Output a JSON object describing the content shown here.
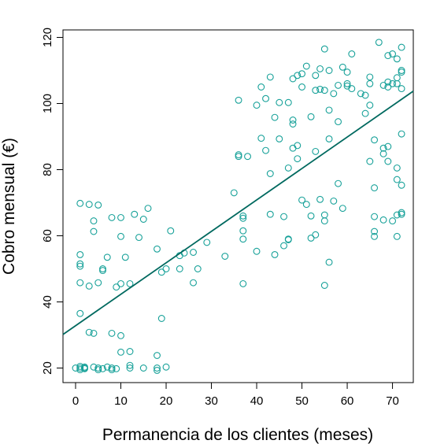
{
  "chart_data": {
    "type": "scatter",
    "xlabel": "Permanencia de los clientes (meses)",
    "ylabel": "Cobro mensual (€)",
    "xlim": [
      -3,
      75
    ],
    "ylim": [
      15,
      123
    ],
    "xticks": [
      0,
      10,
      20,
      30,
      40,
      50,
      60,
      70
    ],
    "yticks": [
      20,
      40,
      60,
      80,
      100,
      120
    ],
    "grid": false,
    "point_color": "#17a199",
    "line_color": "#00695f",
    "regression_line": {
      "intercept": 32.8,
      "slope": 0.951
    },
    "points": [
      [
        0,
        20
      ],
      [
        1,
        20
      ],
      [
        1,
        19.5
      ],
      [
        1,
        20.5
      ],
      [
        2,
        20
      ],
      [
        2,
        19.8
      ],
      [
        2,
        20.3
      ],
      [
        4,
        20.3
      ],
      [
        5,
        20
      ],
      [
        5,
        19.5
      ],
      [
        6,
        19.8
      ],
      [
        7,
        20.3
      ],
      [
        8,
        20
      ],
      [
        9,
        19.8
      ],
      [
        8,
        19.5
      ],
      [
        12,
        20.8
      ],
      [
        12,
        20
      ],
      [
        15,
        20
      ],
      [
        18,
        20
      ],
      [
        18,
        19.3
      ],
      [
        20,
        20.3
      ],
      [
        3,
        30.8
      ],
      [
        4,
        30.5
      ],
      [
        8,
        30.5
      ],
      [
        10,
        29.8
      ],
      [
        10,
        24.8
      ],
      [
        12,
        25
      ],
      [
        18,
        23.8
      ],
      [
        19,
        35
      ],
      [
        1,
        36.5
      ],
      [
        3,
        44.8
      ],
      [
        5,
        45.8
      ],
      [
        1,
        45.8
      ],
      [
        9,
        44.5
      ],
      [
        10,
        45.5
      ],
      [
        12,
        45.5
      ],
      [
        19,
        49
      ],
      [
        20,
        50
      ],
      [
        26,
        45.8
      ],
      [
        1,
        50.8
      ],
      [
        1,
        51.5
      ],
      [
        6,
        49.5
      ],
      [
        6,
        50
      ],
      [
        7,
        53.5
      ],
      [
        1,
        54.3
      ],
      [
        11,
        53.5
      ],
      [
        18,
        56
      ],
      [
        23,
        54
      ],
      [
        24,
        54.8
      ],
      [
        26,
        55
      ],
      [
        23,
        50
      ],
      [
        27,
        50
      ],
      [
        29,
        58
      ],
      [
        4,
        61.3
      ],
      [
        4,
        64.5
      ],
      [
        8,
        65.5
      ],
      [
        10,
        65.5
      ],
      [
        10,
        59.8
      ],
      [
        13,
        66.5
      ],
      [
        14,
        59.5
      ],
      [
        15,
        65
      ],
      [
        16,
        68.3
      ],
      [
        21,
        61.5
      ],
      [
        1,
        69.8
      ],
      [
        3,
        69.5
      ],
      [
        5,
        69.3
      ],
      [
        33,
        53.8
      ],
      [
        35,
        73
      ],
      [
        36,
        84.5
      ],
      [
        36,
        84
      ],
      [
        37,
        45.5
      ],
      [
        37,
        59
      ],
      [
        37,
        61.5
      ],
      [
        37,
        65.3
      ],
      [
        37,
        66
      ],
      [
        38,
        84
      ],
      [
        40,
        55.3
      ],
      [
        41,
        105
      ],
      [
        41,
        89.5
      ],
      [
        42,
        85.8
      ],
      [
        43,
        66.5
      ],
      [
        43,
        78.8
      ],
      [
        44,
        54.3
      ],
      [
        44,
        95.8
      ],
      [
        45,
        100.3
      ],
      [
        45,
        89.3
      ],
      [
        46,
        65.8
      ],
      [
        46,
        57
      ],
      [
        47,
        58.8
      ],
      [
        47,
        59
      ],
      [
        47,
        80.5
      ],
      [
        47,
        100.3
      ],
      [
        48,
        95
      ],
      [
        48,
        93.8
      ],
      [
        48,
        107.5
      ],
      [
        48,
        86.5
      ],
      [
        49,
        83.3
      ],
      [
        49,
        108.5
      ],
      [
        50,
        105
      ],
      [
        50,
        70.8
      ],
      [
        51,
        69.5
      ],
      [
        51,
        111.3
      ],
      [
        52,
        59.3
      ],
      [
        52,
        66
      ],
      [
        52,
        96
      ],
      [
        53,
        60.3
      ],
      [
        53,
        85.5
      ],
      [
        53,
        104
      ],
      [
        54,
        104.3
      ],
      [
        54,
        110.5
      ],
      [
        54,
        71
      ],
      [
        55,
        45
      ],
      [
        55,
        64.5
      ],
      [
        55,
        66.3
      ],
      [
        55,
        116.5
      ],
      [
        56,
        98
      ],
      [
        56,
        110
      ],
      [
        56,
        52
      ],
      [
        56,
        89.3
      ],
      [
        57,
        103
      ],
      [
        57,
        70.5
      ],
      [
        58,
        75.8
      ],
      [
        58,
        94.5
      ],
      [
        59,
        68.3
      ],
      [
        59,
        111
      ],
      [
        60,
        106
      ],
      [
        60,
        105.3
      ],
      [
        61,
        115
      ],
      [
        61,
        104.5
      ],
      [
        64,
        97
      ],
      [
        64,
        102.5
      ],
      [
        65,
        82.5
      ],
      [
        65,
        99.5
      ],
      [
        65,
        106
      ],
      [
        65,
        108
      ],
      [
        66,
        74.5
      ],
      [
        66,
        89
      ],
      [
        66,
        61.3
      ],
      [
        66,
        59.8
      ],
      [
        66,
        65.8
      ],
      [
        67,
        118.5
      ],
      [
        68,
        105.5
      ],
      [
        68,
        84.8
      ],
      [
        68,
        86.5
      ],
      [
        68,
        64.8
      ],
      [
        69,
        87
      ],
      [
        69,
        82.5
      ],
      [
        69,
        114.5
      ],
      [
        69,
        105
      ],
      [
        69,
        106.5
      ],
      [
        70,
        115
      ],
      [
        70,
        106
      ],
      [
        70,
        64.5
      ],
      [
        71,
        113.5
      ],
      [
        71,
        107.8
      ],
      [
        71,
        106
      ],
      [
        71,
        80.5
      ],
      [
        71,
        77
      ],
      [
        71,
        59.8
      ],
      [
        71,
        66.3
      ],
      [
        72,
        117
      ],
      [
        72,
        110
      ],
      [
        72,
        109.5
      ],
      [
        72,
        104.5
      ],
      [
        72,
        90.8
      ],
      [
        72,
        75.3
      ],
      [
        72,
        67
      ],
      [
        72,
        66.5
      ],
      [
        36,
        101
      ],
      [
        40,
        99.5
      ],
      [
        42,
        101.5
      ],
      [
        43,
        108
      ],
      [
        49,
        87.3
      ],
      [
        50,
        109
      ],
      [
        53,
        108.5
      ],
      [
        55,
        104
      ],
      [
        58,
        105.5
      ],
      [
        60,
        109.5
      ],
      [
        63,
        103
      ]
    ]
  }
}
